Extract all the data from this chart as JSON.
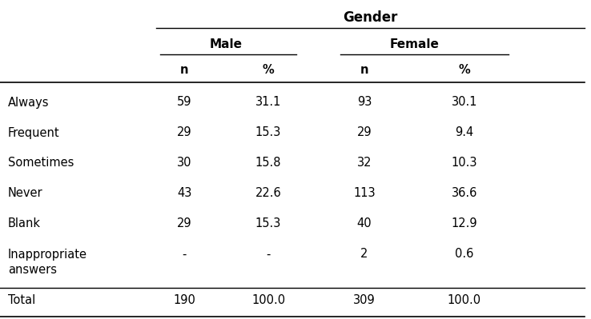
{
  "title": "Gender",
  "col_groups": [
    "Male",
    "Female"
  ],
  "col_headers": [
    "n",
    "%",
    "n",
    "%"
  ],
  "row_labels": [
    "Always",
    "Frequent",
    "Sometimes",
    "Never",
    "Blank",
    "Inappropriate\nanswers",
    "Total"
  ],
  "table_data": [
    [
      "59",
      "31.1",
      "93",
      "30.1"
    ],
    [
      "29",
      "15.3",
      "29",
      "9.4"
    ],
    [
      "30",
      "15.8",
      "32",
      "10.3"
    ],
    [
      "43",
      "22.6",
      "113",
      "36.6"
    ],
    [
      "29",
      "15.3",
      "40",
      "12.9"
    ],
    [
      "-",
      "-",
      "2",
      "0.6"
    ],
    [
      "190",
      "100.0",
      "309",
      "100.0"
    ]
  ],
  "bg_color": "#ffffff",
  "text_color": "#000000",
  "font_size": 10.5,
  "header_font_size": 11
}
